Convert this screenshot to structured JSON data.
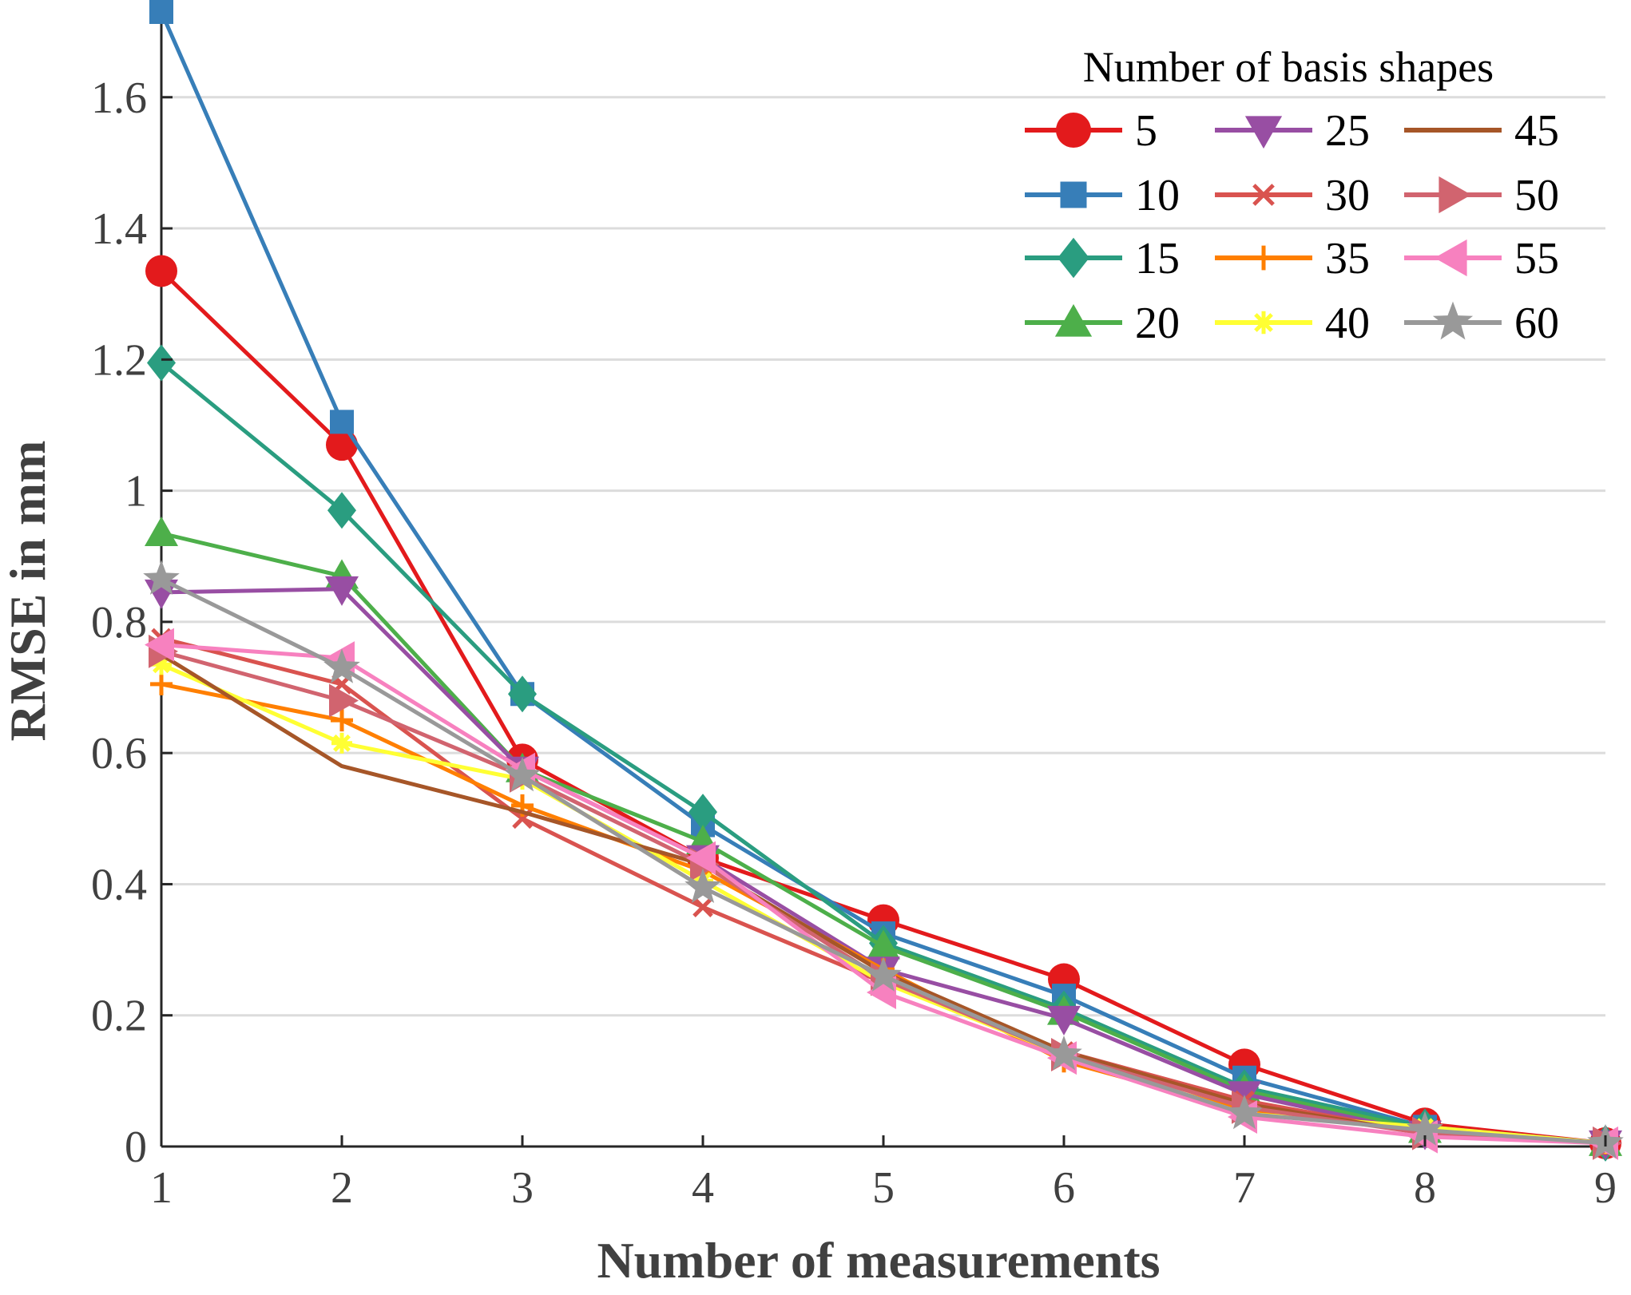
{
  "chart_data": {
    "type": "line",
    "title": "",
    "xlabel": "Number of measurements",
    "ylabel": "RMSE in mm",
    "x": [
      1,
      2,
      3,
      4,
      5,
      6,
      7,
      8,
      9
    ],
    "xlim": [
      1,
      9
    ],
    "ylim": [
      0,
      1.73
    ],
    "xticks": [
      "1",
      "2",
      "3",
      "4",
      "5",
      "6",
      "7",
      "8",
      "9"
    ],
    "yticks": [
      {
        "value": 0,
        "label": "0"
      },
      {
        "value": 0.2,
        "label": "0.2"
      },
      {
        "value": 0.4,
        "label": "0.4"
      },
      {
        "value": 0.6,
        "label": "0.6"
      },
      {
        "value": 0.8,
        "label": "0.8"
      },
      {
        "value": 1.0,
        "label": "1"
      },
      {
        "value": 1.2,
        "label": "1.2"
      },
      {
        "value": 1.4,
        "label": "1.4"
      },
      {
        "value": 1.6,
        "label": "1.6"
      }
    ],
    "grid": "horizontal",
    "legend": {
      "title": "Number of basis shapes",
      "placement": "top-right",
      "columns": 3
    },
    "series": [
      {
        "name": "5",
        "color": "#e31a1c",
        "marker": "circle",
        "values": [
          1.335,
          1.07,
          0.59,
          0.44,
          0.345,
          0.255,
          0.125,
          0.035,
          0.005
        ]
      },
      {
        "name": "10",
        "color": "#377eb8",
        "marker": "square",
        "values": [
          1.73,
          1.105,
          0.69,
          0.49,
          0.325,
          0.23,
          0.105,
          0.03,
          0.005
        ]
      },
      {
        "name": "15",
        "color": "#2a9d80",
        "marker": "diamond",
        "values": [
          1.195,
          0.97,
          0.69,
          0.51,
          0.31,
          0.21,
          0.09,
          0.03,
          0.005
        ]
      },
      {
        "name": "20",
        "color": "#4daf4a",
        "marker": "triangle-up",
        "values": [
          0.935,
          0.87,
          0.575,
          0.465,
          0.305,
          0.205,
          0.085,
          0.025,
          0.005
        ]
      },
      {
        "name": "25",
        "color": "#984ea3",
        "marker": "triangle-down",
        "values": [
          0.845,
          0.85,
          0.575,
          0.44,
          0.27,
          0.195,
          0.08,
          0.02,
          0.005
        ]
      },
      {
        "name": "30",
        "color": "#d9534f",
        "marker": "x",
        "values": [
          0.775,
          0.705,
          0.5,
          0.365,
          0.25,
          0.145,
          0.07,
          0.02,
          0.005
        ]
      },
      {
        "name": "35",
        "color": "#ff7f00",
        "marker": "plus",
        "values": [
          0.705,
          0.65,
          0.52,
          0.42,
          0.27,
          0.13,
          0.055,
          0.025,
          0.005
        ]
      },
      {
        "name": "40",
        "color": "#ffff33",
        "marker": "asterisk",
        "values": [
          0.735,
          0.615,
          0.56,
          0.405,
          0.25,
          0.14,
          0.05,
          0.03,
          0.005
        ]
      },
      {
        "name": "45",
        "color": "#a65628",
        "marker": "none",
        "values": [
          0.75,
          0.58,
          0.51,
          0.43,
          0.265,
          0.145,
          0.065,
          0.02,
          0.005
        ]
      },
      {
        "name": "50",
        "color": "#d1646f",
        "marker": "triangle-right",
        "values": [
          0.755,
          0.68,
          0.565,
          0.43,
          0.255,
          0.14,
          0.06,
          0.02,
          0.005
        ]
      },
      {
        "name": "55",
        "color": "#f781bf",
        "marker": "triangle-left",
        "values": [
          0.765,
          0.745,
          0.575,
          0.44,
          0.235,
          0.135,
          0.045,
          0.015,
          0.005
        ]
      },
      {
        "name": "60",
        "color": "#999999",
        "marker": "star",
        "values": [
          0.865,
          0.73,
          0.565,
          0.395,
          0.26,
          0.14,
          0.05,
          0.025,
          0.005
        ]
      }
    ]
  }
}
